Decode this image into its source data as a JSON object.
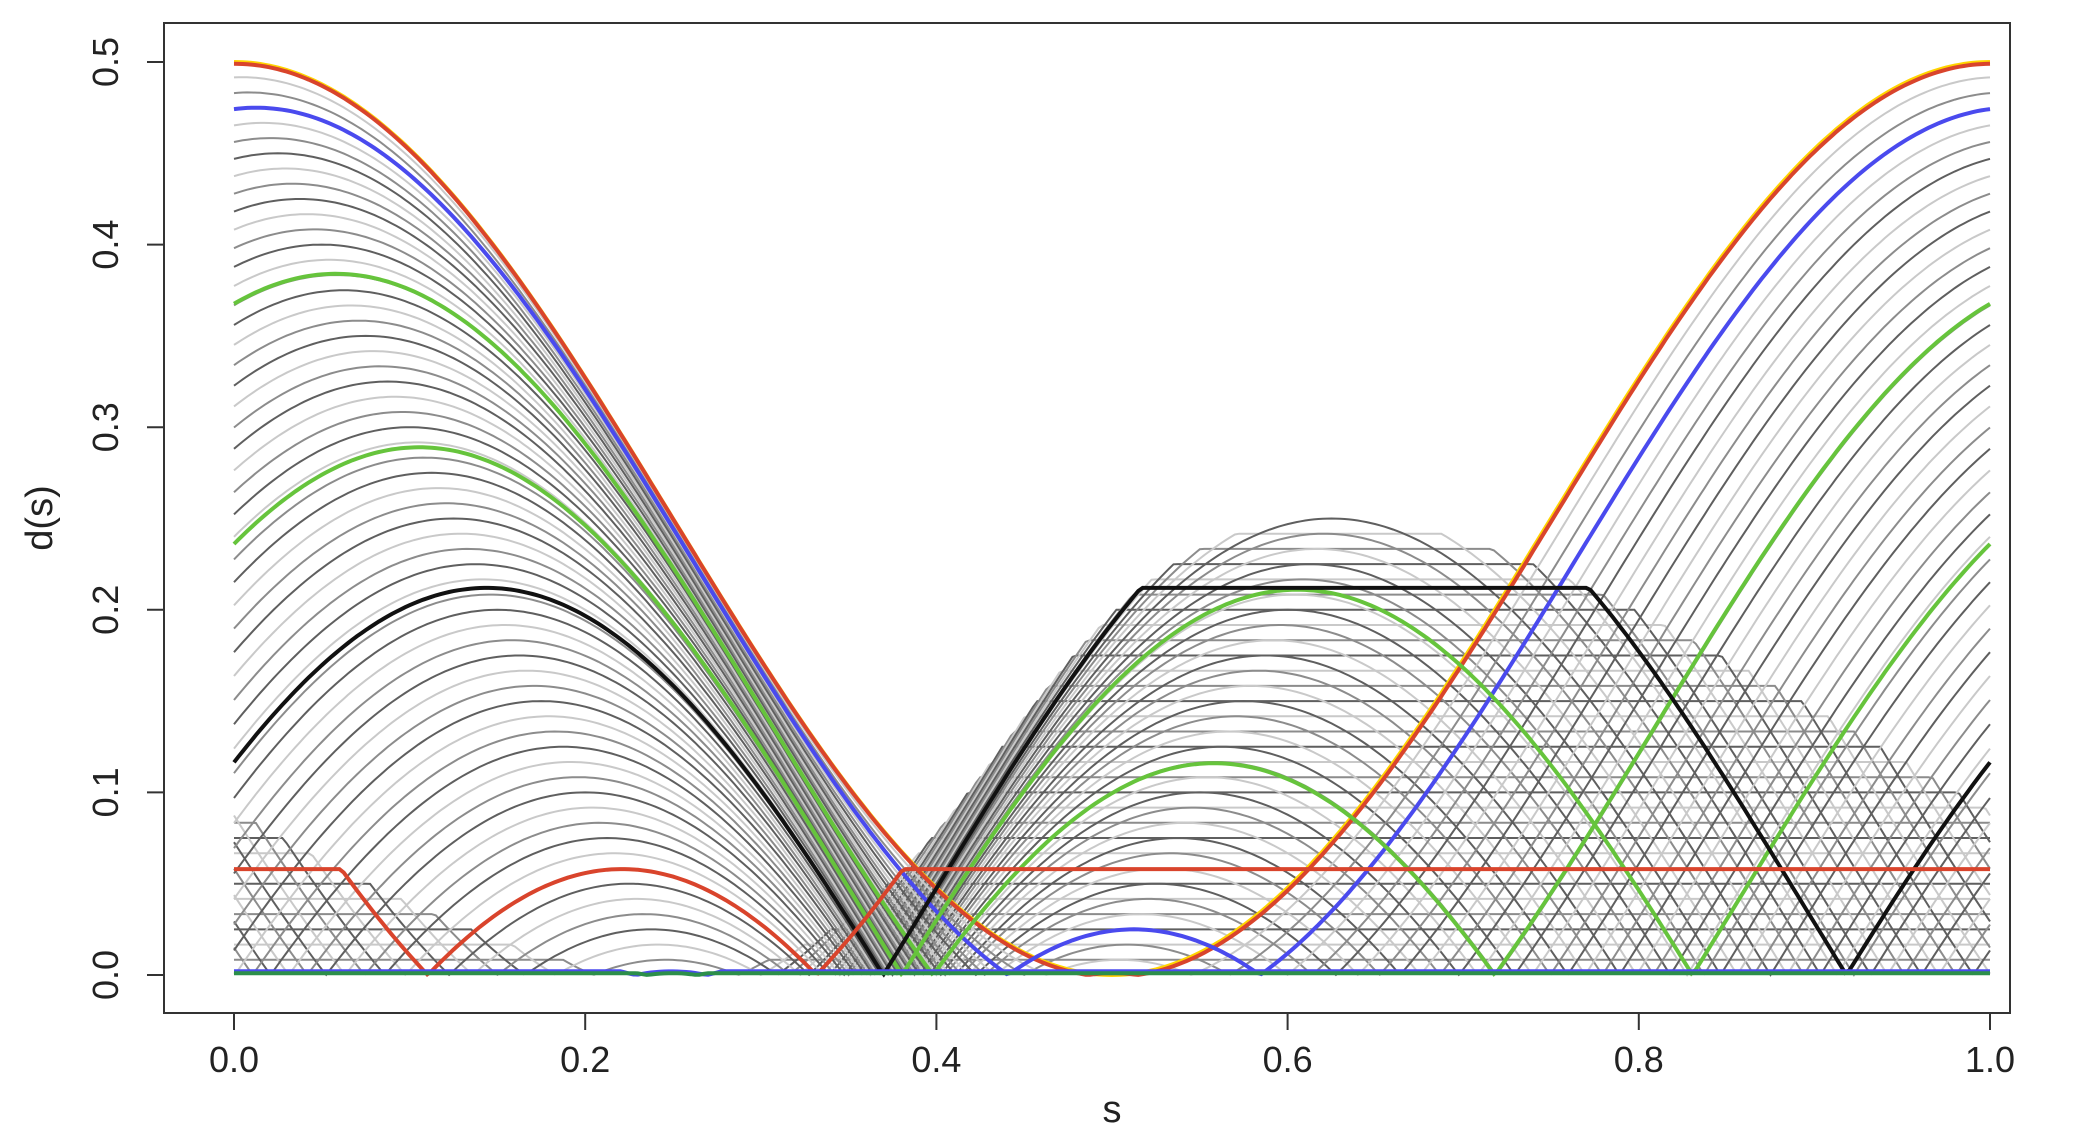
{
  "chart_data": {
    "type": "line",
    "title": "",
    "xlabel": "s",
    "ylabel": "d(s)",
    "xlim": [
      0.0,
      1.0
    ],
    "ylim": [
      0.0,
      0.5
    ],
    "x_ticks": [
      "0.0",
      "0.2",
      "0.4",
      "0.6",
      "0.8",
      "1.0"
    ],
    "y_ticks": [
      "0.0",
      "0.1",
      "0.2",
      "0.3",
      "0.4",
      "0.5"
    ],
    "grid": false,
    "legend": "none",
    "background_family": {
      "description_of_rule": "d_c(s) = min(c, |0.5 - |cos(pi s)|^2 ... shape|) truncated curves",
      "count": 60,
      "max_level": 0.5,
      "colors": [
        "#5f5f5f",
        "#8c8c8c",
        "#c9c9c9"
      ]
    },
    "highlighted_levels": [
      {
        "level": 0.5,
        "color": "#ffd400"
      },
      {
        "level": 0.499,
        "color": "#d9442c"
      },
      {
        "level": 0.475,
        "color": "#4a4aee"
      },
      {
        "level": 0.384,
        "color": "#66c43c"
      },
      {
        "level": 0.289,
        "color": "#66c43c"
      },
      {
        "level": 0.212,
        "color": "#111111"
      },
      {
        "level": 0.058,
        "color": "#d9442c"
      },
      {
        "level": 0.002,
        "color": "#4a4aee"
      },
      {
        "level": 0.001,
        "color": "#2c8f4a"
      }
    ],
    "colors": {
      "gray_dark": "#5f5f5f",
      "gray_mid": "#8c8c8c",
      "gray_light": "#c9c9c9",
      "red": "#d9442c",
      "blue": "#4a4aee",
      "green": "#66c43c",
      "yellow": "#ffd400",
      "black": "#111111"
    }
  }
}
